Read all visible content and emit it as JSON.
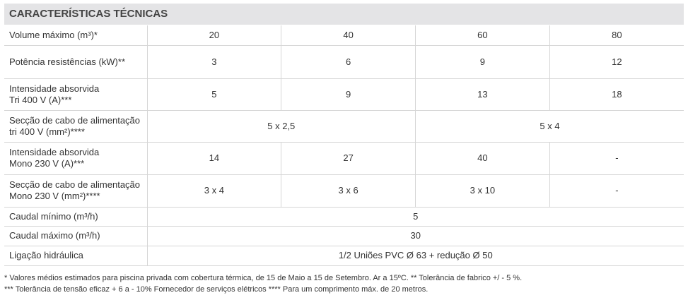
{
  "header": {
    "title": "CARACTERÍSTICAS TÉCNICAS"
  },
  "table": {
    "rows": [
      {
        "label": [
          "Volume máximo (m³)*"
        ],
        "cells": [
          "20",
          "40",
          "60",
          "80"
        ]
      },
      {
        "label": [
          "Potência resistências (kW)**"
        ],
        "cells": [
          "3",
          "6",
          "9",
          "12"
        ]
      },
      {
        "label": [
          "Intensidade absorvida",
          "Tri 400 V (A)***"
        ],
        "cells": [
          "5",
          "9",
          "13",
          "18"
        ]
      },
      {
        "label": [
          "Secção de cabo de alimentação",
          "tri 400 V (mm²)****"
        ],
        "cells": [
          "5 x 2,5",
          "5 x 4"
        ]
      },
      {
        "label": [
          "Intensidade absorvida",
          "Mono 230 V (A)***"
        ],
        "cells": [
          "14",
          "27",
          "40",
          "-"
        ]
      },
      {
        "label": [
          "Secção de cabo de alimentação",
          "Mono 230 V (mm²)****"
        ],
        "cells": [
          "3 x 4",
          "3 x 6",
          "3 x 10",
          "-"
        ]
      },
      {
        "label": [
          "Caudal mínimo (m³/h)"
        ],
        "cells": [
          "5"
        ]
      },
      {
        "label": [
          "Caudal máximo (m³/h)"
        ],
        "cells": [
          "30"
        ]
      },
      {
        "label": [
          "Ligação hidráulica"
        ],
        "cells": [
          "1/2 Uniões PVC Ø 63 + redução Ø 50"
        ]
      }
    ]
  },
  "footnotes": [
    "* Valores médios estimados para piscina privada com cobertura térmica, de 15 de Maio a 15 de Setembro. Ar a 15ºC. ** Tolerância de fabrico +/ - 5 %.",
    "*** Tolerância de tensão eficaz + 6 a - 10% Fornecedor de serviços elétricos **** Para um comprimento máx. de 20 metros."
  ]
}
